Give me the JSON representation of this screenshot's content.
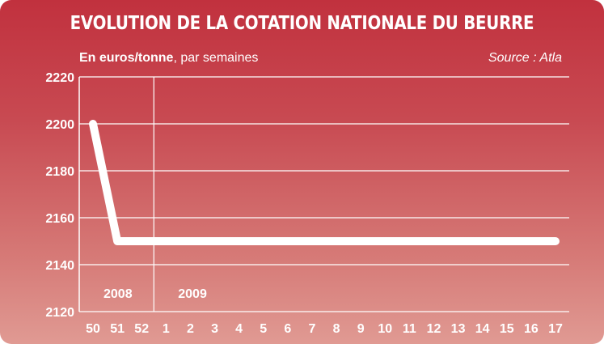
{
  "chart_data": {
    "type": "line",
    "title": "EVOLUTION DE LA COTATION NATIONALE DU BEURRE",
    "subtitle_bold": "En euros/tonne",
    "subtitle_rest": ", par semaines",
    "source": "Source : Atla",
    "categories": [
      "50",
      "51",
      "52",
      "1",
      "2",
      "3",
      "4",
      "5",
      "6",
      "7",
      "8",
      "9",
      "10",
      "11",
      "12",
      "13",
      "14",
      "15",
      "16",
      "17"
    ],
    "series": [
      {
        "values": [
          2200,
          2150,
          2150,
          2150,
          2150,
          2150,
          2150,
          2150,
          2150,
          2150,
          2150,
          2150,
          2150,
          2150,
          2150,
          2150,
          2150,
          2150,
          2150,
          2150
        ]
      }
    ],
    "ylim": [
      2120,
      2220
    ],
    "yticks": [
      2120,
      2140,
      2160,
      2180,
      2200,
      2220
    ],
    "year_labels": [
      {
        "label": "2008",
        "start_index": 0
      },
      {
        "label": "2009",
        "start_index": 3
      }
    ],
    "grid": true,
    "xlabel": "",
    "ylabel": ""
  },
  "colors": {
    "background_top": "#c1313e",
    "background_bottom": "#e09a93",
    "line": "#ffffff",
    "grid": "#ffffff"
  }
}
